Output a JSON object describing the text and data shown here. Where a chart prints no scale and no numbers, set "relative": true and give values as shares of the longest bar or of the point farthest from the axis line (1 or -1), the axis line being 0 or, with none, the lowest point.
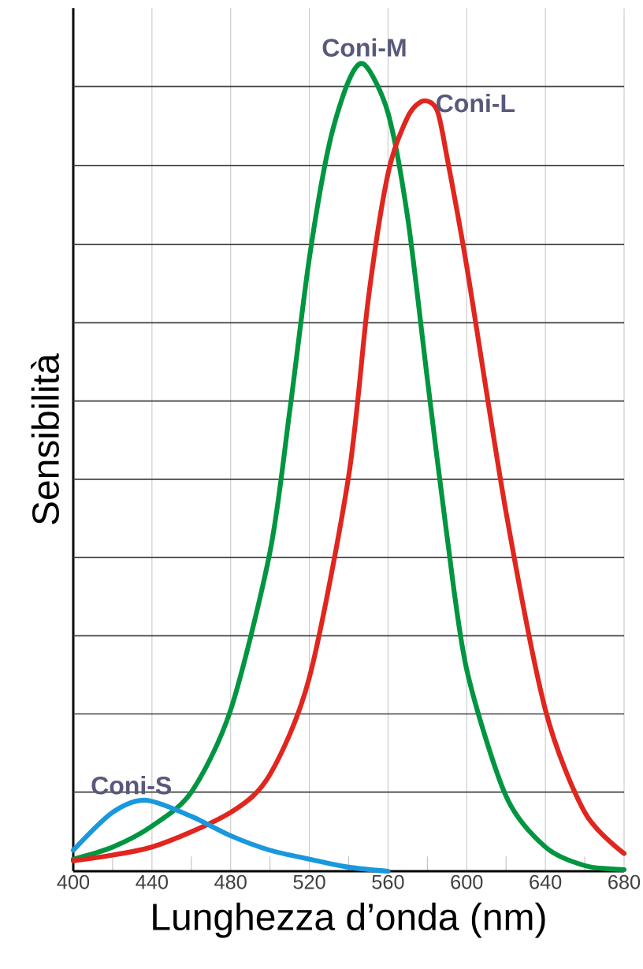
{
  "chart_data": {
    "type": "line",
    "xlabel": "Lunghezza d’onda (nm)",
    "ylabel": "Sensibilità",
    "relative": true,
    "xlim": [
      400,
      680
    ],
    "xticks": [
      400,
      440,
      480,
      520,
      560,
      600,
      640,
      680
    ],
    "grid": "x",
    "marker": "none",
    "line_style": "solid",
    "ref_lines": [
      {
        "axis": "y",
        "value": 0.098,
        "color": "#404040"
      },
      {
        "axis": "y",
        "value": 0.195,
        "color": "#404040"
      },
      {
        "axis": "y",
        "value": 0.292,
        "color": "#404040"
      },
      {
        "axis": "y",
        "value": 0.389,
        "color": "#404040"
      },
      {
        "axis": "y",
        "value": 0.486,
        "color": "#404040"
      },
      {
        "axis": "y",
        "value": 0.583,
        "color": "#404040"
      },
      {
        "axis": "y",
        "value": 0.68,
        "color": "#404040"
      },
      {
        "axis": "y",
        "value": 0.777,
        "color": "#404040"
      },
      {
        "axis": "y",
        "value": 0.875,
        "color": "#404040"
      },
      {
        "axis": "y",
        "value": 0.973,
        "color": "#404040"
      }
    ],
    "series": [
      {
        "name": "Coni-M",
        "color": "#009540",
        "x": [
          400,
          420,
          440,
          460,
          480,
          500,
          510,
          520,
          530,
          540,
          548,
          560,
          570,
          580,
          590,
          600,
          620,
          640,
          660,
          680
        ],
        "values": [
          0.015,
          0.03,
          0.056,
          0.098,
          0.2,
          0.396,
          0.57,
          0.76,
          0.9,
          0.98,
          1.0,
          0.94,
          0.81,
          0.61,
          0.415,
          0.25,
          0.093,
          0.03,
          0.007,
          0.002
        ]
      },
      {
        "name": "Coni-L",
        "color": "#e0261e",
        "x": [
          400,
          440,
          480,
          500,
          520,
          540,
          550,
          560,
          570,
          578,
          585,
          590,
          600,
          620,
          640,
          660,
          680
        ],
        "values": [
          0.013,
          0.03,
          0.073,
          0.12,
          0.24,
          0.49,
          0.71,
          0.865,
          0.935,
          0.955,
          0.943,
          0.885,
          0.75,
          0.445,
          0.2,
          0.073,
          0.022
        ]
      },
      {
        "name": "Coni-S",
        "color": "#1998de",
        "x": [
          400,
          420,
          437,
          460,
          480,
          500,
          520,
          540,
          560
        ],
        "values": [
          0.026,
          0.073,
          0.088,
          0.068,
          0.044,
          0.026,
          0.015,
          0.005,
          0.0
        ]
      }
    ]
  }
}
